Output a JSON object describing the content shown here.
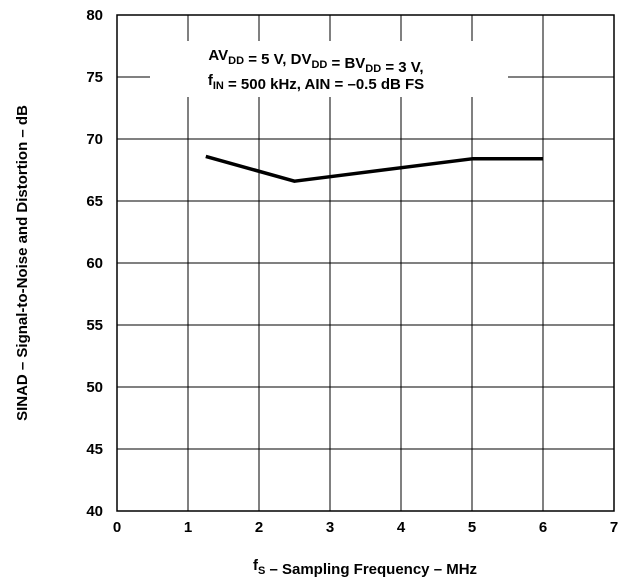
{
  "chart_data": {
    "type": "line",
    "title": "",
    "xlabel": {
      "main": "f",
      "sub": "S",
      "rest": " – Sampling Frequency – MHz"
    },
    "ylabel": "SINAD – Signal-to-Noise and Distortion – dB",
    "xlim": [
      0,
      7
    ],
    "ylim": [
      40,
      80
    ],
    "xticks": [
      0,
      1,
      2,
      3,
      4,
      5,
      6,
      7
    ],
    "yticks": [
      40,
      45,
      50,
      55,
      60,
      65,
      70,
      75,
      80
    ],
    "grid": true,
    "series": [
      {
        "x": [
          1.25,
          2.5,
          5.0,
          6.0
        ],
        "y": [
          68.6,
          66.6,
          68.4,
          68.4
        ],
        "color": "#000000"
      }
    ],
    "annotation": {
      "line1": [
        {
          "t": "AV"
        },
        {
          "t": "DD",
          "sub": true
        },
        {
          "t": " = 5 V, DV"
        },
        {
          "t": "DD",
          "sub": true
        },
        {
          "t": " = BV"
        },
        {
          "t": "DD",
          "sub": true
        },
        {
          "t": " = 3 V,"
        }
      ],
      "line2": [
        {
          "t": "f"
        },
        {
          "t": "IN",
          "sub": true
        },
        {
          "t": " = 500 kHz, AIN = –0.5 dB FS"
        }
      ]
    }
  }
}
